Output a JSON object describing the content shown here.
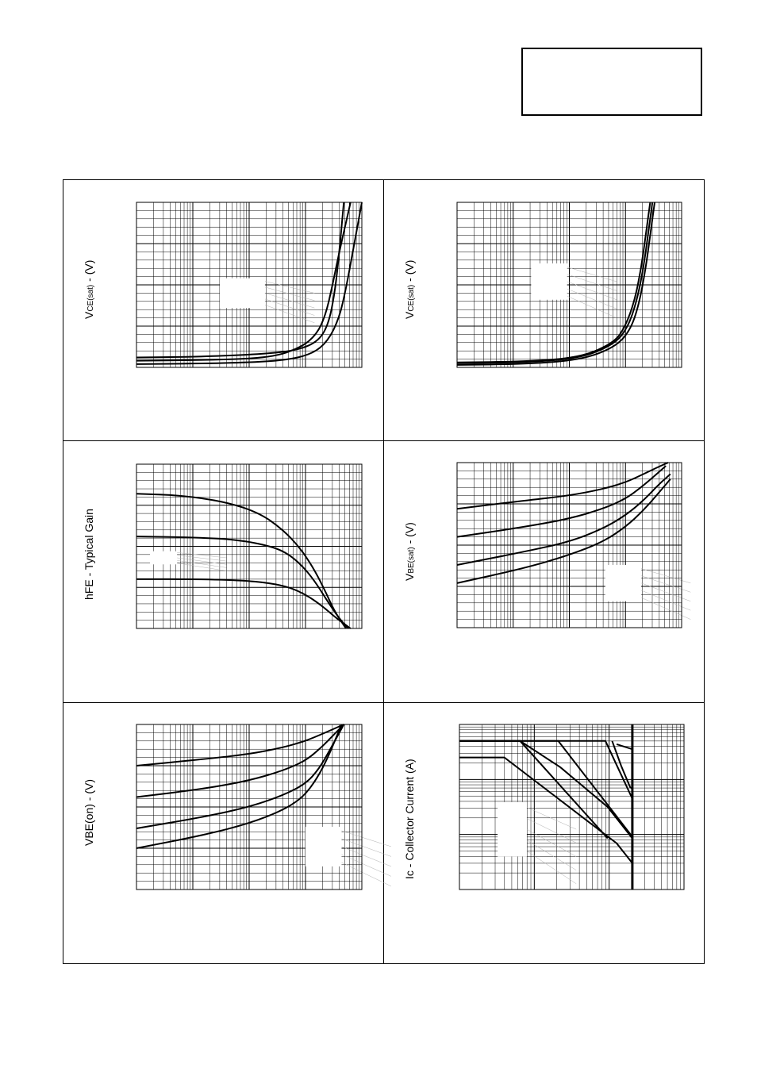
{
  "colors": {
    "ink": "#000000",
    "minor_grid": "#000000",
    "overlay_grid": "#b0b0b0"
  },
  "ylabels": {
    "vce_sat_1": {
      "main": "V",
      "sub": "CE(sat)",
      "tail": " - (V)"
    },
    "vce_sat_2": {
      "main": "V",
      "sub": "CE(sat)",
      "tail": " - (V)"
    },
    "hfe": {
      "main": "hFE - Typical Gain",
      "sub": "",
      "tail": ""
    },
    "vbe_sat": {
      "main": "V",
      "sub": "BE(sat)",
      "tail": " - (V)"
    },
    "vbe_on": {
      "main": "VBE(on) - (V)",
      "sub": "",
      "tail": ""
    },
    "ic": {
      "main": "Ic - Collector Current (A)",
      "sub": "",
      "tail": ""
    }
  },
  "chart_data": [
    {
      "id": "vce_sat_1",
      "type": "line",
      "xscale": "log",
      "xlim": [
        0,
        1
      ],
      "ylim": [
        0,
        1
      ],
      "grid": true,
      "series": [
        {
          "x": [
            0,
            0.3,
            0.55,
            0.7,
            0.8,
            0.85,
            0.88,
            0.9,
            0.92
          ],
          "y": [
            0.06,
            0.065,
            0.08,
            0.1,
            0.15,
            0.25,
            0.45,
            0.7,
            1.0
          ]
        },
        {
          "x": [
            0,
            0.35,
            0.6,
            0.73,
            0.8,
            0.84,
            0.87,
            0.9,
            0.95
          ],
          "y": [
            0.04,
            0.045,
            0.06,
            0.12,
            0.2,
            0.32,
            0.5,
            0.7,
            1.0
          ]
        },
        {
          "x": [
            0,
            0.4,
            0.65,
            0.78,
            0.85,
            0.9,
            0.93,
            0.96,
            1.0
          ],
          "y": [
            0.02,
            0.025,
            0.04,
            0.08,
            0.16,
            0.3,
            0.48,
            0.7,
            1.0
          ]
        }
      ]
    },
    {
      "id": "vce_sat_2",
      "type": "line",
      "xscale": "log",
      "xlim": [
        0,
        1
      ],
      "ylim": [
        0,
        1
      ],
      "grid": true,
      "series": [
        {
          "x": [
            0,
            0.3,
            0.55,
            0.7,
            0.75,
            0.79,
            0.82,
            0.84,
            0.86
          ],
          "y": [
            0.03,
            0.035,
            0.06,
            0.15,
            0.25,
            0.4,
            0.6,
            0.8,
            1.0
          ]
        },
        {
          "x": [
            0,
            0.3,
            0.55,
            0.7,
            0.76,
            0.8,
            0.83,
            0.85,
            0.87
          ],
          "y": [
            0.025,
            0.03,
            0.055,
            0.14,
            0.24,
            0.4,
            0.6,
            0.8,
            1.0
          ]
        },
        {
          "x": [
            0,
            0.3,
            0.55,
            0.7,
            0.77,
            0.81,
            0.84,
            0.86,
            0.88
          ],
          "y": [
            0.015,
            0.02,
            0.045,
            0.12,
            0.22,
            0.38,
            0.6,
            0.8,
            1.0
          ]
        }
      ]
    },
    {
      "id": "hfe",
      "type": "line",
      "xscale": "log",
      "xlim": [
        0,
        1
      ],
      "ylim": [
        0,
        1
      ],
      "grid": true,
      "series": [
        {
          "x": [
            0,
            0.2,
            0.4,
            0.55,
            0.65,
            0.72,
            0.78,
            0.83,
            0.88,
            0.93
          ],
          "y": [
            0.82,
            0.81,
            0.77,
            0.7,
            0.6,
            0.5,
            0.38,
            0.25,
            0.1,
            0.0
          ]
        },
        {
          "x": [
            0,
            0.25,
            0.45,
            0.6,
            0.68,
            0.75,
            0.8,
            0.85,
            0.9,
            0.94
          ],
          "y": [
            0.56,
            0.555,
            0.54,
            0.5,
            0.45,
            0.36,
            0.27,
            0.16,
            0.06,
            0.0
          ]
        },
        {
          "x": [
            0,
            0.3,
            0.5,
            0.62,
            0.7,
            0.77,
            0.83,
            0.88,
            0.92,
            0.95
          ],
          "y": [
            0.3,
            0.3,
            0.29,
            0.27,
            0.24,
            0.19,
            0.13,
            0.07,
            0.03,
            0.0
          ]
        }
      ]
    },
    {
      "id": "vbe_sat",
      "type": "line",
      "xscale": "log",
      "xlim": [
        0,
        1
      ],
      "ylim": [
        0,
        1
      ],
      "grid": true,
      "series": [
        {
          "x": [
            0,
            0.3,
            0.5,
            0.65,
            0.75,
            0.83,
            0.89,
            0.94
          ],
          "y": [
            0.72,
            0.77,
            0.8,
            0.84,
            0.88,
            0.93,
            0.97,
            1.0
          ]
        },
        {
          "x": [
            0,
            0.3,
            0.5,
            0.65,
            0.75,
            0.82,
            0.88,
            0.93
          ],
          "y": [
            0.55,
            0.61,
            0.66,
            0.72,
            0.78,
            0.85,
            0.92,
            0.98
          ]
        },
        {
          "x": [
            0,
            0.3,
            0.5,
            0.65,
            0.75,
            0.83,
            0.9,
            0.95
          ],
          "y": [
            0.38,
            0.46,
            0.52,
            0.6,
            0.68,
            0.77,
            0.87,
            0.93
          ]
        },
        {
          "x": [
            0,
            0.3,
            0.5,
            0.65,
            0.75,
            0.83,
            0.9,
            0.95
          ],
          "y": [
            0.27,
            0.36,
            0.44,
            0.52,
            0.61,
            0.71,
            0.82,
            0.9
          ]
        }
      ]
    },
    {
      "id": "vbe_on",
      "type": "line",
      "xscale": "log",
      "xlim": [
        0,
        1
      ],
      "ylim": [
        0,
        1
      ],
      "grid": true,
      "series": [
        {
          "x": [
            0,
            0.3,
            0.5,
            0.65,
            0.75,
            0.82,
            0.87,
            0.92
          ],
          "y": [
            0.75,
            0.79,
            0.82,
            0.86,
            0.9,
            0.94,
            0.97,
            1.0
          ]
        },
        {
          "x": [
            0,
            0.3,
            0.5,
            0.65,
            0.75,
            0.82,
            0.87,
            0.92
          ],
          "y": [
            0.56,
            0.61,
            0.66,
            0.72,
            0.78,
            0.86,
            0.93,
            1.0
          ]
        },
        {
          "x": [
            0,
            0.3,
            0.5,
            0.65,
            0.75,
            0.81,
            0.86,
            0.92
          ],
          "y": [
            0.37,
            0.44,
            0.5,
            0.57,
            0.64,
            0.73,
            0.85,
            1.0
          ]
        },
        {
          "x": [
            0,
            0.3,
            0.5,
            0.65,
            0.74,
            0.8,
            0.85,
            0.91
          ],
          "y": [
            0.25,
            0.33,
            0.4,
            0.48,
            0.56,
            0.67,
            0.8,
            1.0
          ]
        }
      ]
    },
    {
      "id": "ic",
      "type": "line",
      "xscale": "log",
      "yscale": "log",
      "xlim": [
        0,
        1
      ],
      "ylim": [
        0,
        1
      ],
      "grid": true,
      "series": [
        {
          "x": [
            0,
            0.2,
            0.27,
            0.66
          ],
          "y": [
            0.9,
            0.9,
            0.9,
            0.31
          ]
        },
        {
          "x": [
            0,
            0.44,
            0.77
          ],
          "y": [
            0.9,
            0.9,
            0.32
          ]
        },
        {
          "x": [
            0,
            0.2,
            0.27,
            0.45,
            0.66,
            0.77
          ],
          "y": [
            0.9,
            0.9,
            0.9,
            0.74,
            0.5,
            0.31
          ]
        },
        {
          "x": [
            0,
            0.65,
            0.77
          ],
          "y": [
            0.9,
            0.9,
            0.55
          ]
        },
        {
          "x": [
            0.68,
            0.72,
            0.76,
            0.77
          ],
          "y": [
            0.9,
            0.75,
            0.62,
            0.61
          ]
        },
        {
          "x": [
            0.7,
            0.77,
            0.77
          ],
          "y": [
            0.88,
            0.85,
            0.74
          ]
        },
        {
          "x": [
            0,
            0.2,
            0.7,
            0.77
          ],
          "y": [
            0.8,
            0.8,
            0.28,
            0.16
          ]
        },
        {
          "x": [
            0.77,
            0.77
          ],
          "y": [
            0.0,
            1.0
          ]
        }
      ]
    }
  ]
}
